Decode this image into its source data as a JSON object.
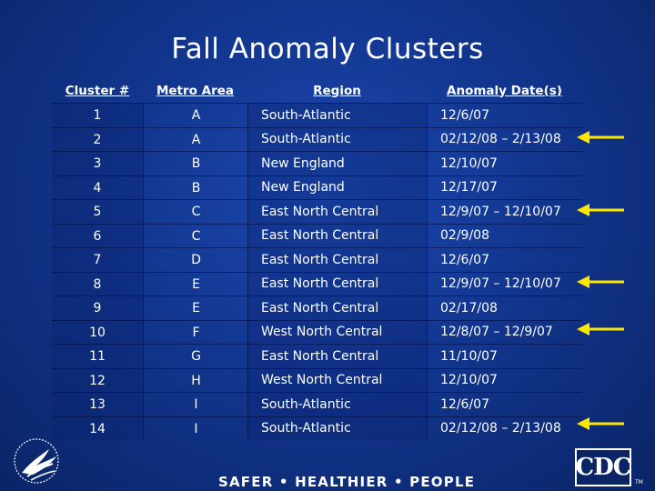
{
  "slide": {
    "title": "Fall Anomaly Clusters",
    "slogan": "SAFER • HEALTHIER • PEOPLE",
    "cdc_logo_text": "CDC",
    "trademark": "TM"
  },
  "table": {
    "headers": [
      "Cluster #",
      "Metro Area",
      "Region",
      "Anomaly Date(s)"
    ],
    "rows": [
      [
        "1",
        "A",
        "South-Atlantic",
        "12/6/07"
      ],
      [
        "2",
        "A",
        "South-Atlantic",
        "02/12/08 – 2/13/08"
      ],
      [
        "3",
        "B",
        "New England",
        "12/10/07"
      ],
      [
        "4",
        "B",
        "New England",
        "12/17/07"
      ],
      [
        "5",
        "C",
        "East North Central",
        "12/9/07 – 12/10/07"
      ],
      [
        "6",
        "C",
        "East North Central",
        "02/9/08"
      ],
      [
        "7",
        "D",
        "East North Central",
        "12/6/07"
      ],
      [
        "8",
        "E",
        "East North Central",
        "12/9/07 – 12/10/07"
      ],
      [
        "9",
        "E",
        "East North Central",
        "02/17/08"
      ],
      [
        "10",
        "F",
        "West North Central",
        "12/8/07 – 12/9/07"
      ],
      [
        "11",
        "G",
        "East North Central",
        "11/10/07"
      ],
      [
        "12",
        "H",
        "West North Central",
        "12/10/07"
      ],
      [
        "13",
        "I",
        "South-Atlantic",
        "12/6/07"
      ],
      [
        "14",
        "I",
        "South-Atlantic",
        "02/12/08 – 2/13/08"
      ]
    ]
  },
  "arrows": {
    "color": "#ffe600",
    "marked_clusters": [
      "2",
      "5",
      "8",
      "10",
      "14"
    ]
  },
  "colors": {
    "background": "#12368f",
    "text": "#ffffff"
  }
}
